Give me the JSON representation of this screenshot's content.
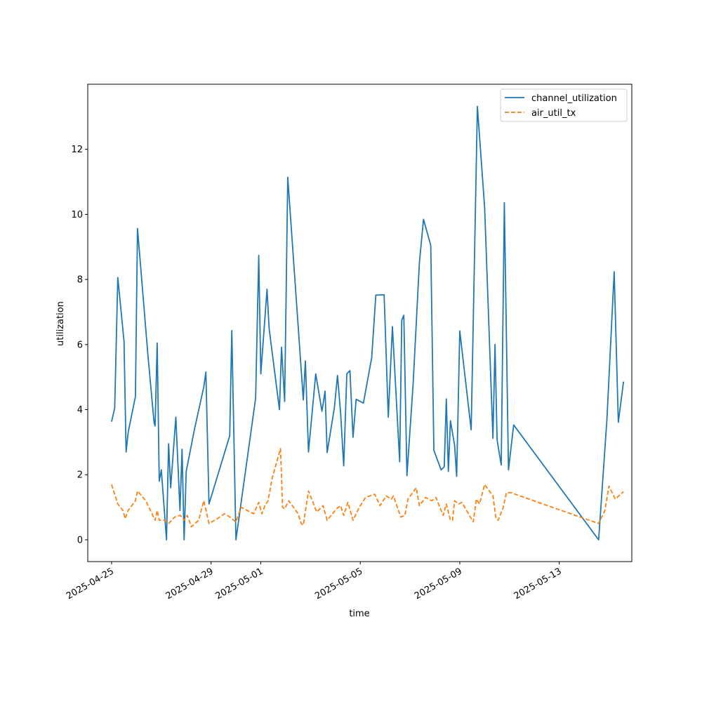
{
  "chart_data": {
    "type": "line",
    "xlabel": "time",
    "ylabel": "utilization",
    "x_type": "date",
    "xlim": [
      "2025-04-24T01:00",
      "2025-05-15T22:00"
    ],
    "ylim": [
      -0.67,
      14.0
    ],
    "x_ticks": [
      "2025-04-25",
      "2025-04-29",
      "2025-05-01",
      "2025-05-05",
      "2025-05-09",
      "2025-05-13"
    ],
    "y_ticks": [
      0,
      2,
      4,
      6,
      8,
      10,
      12
    ],
    "grid": false,
    "legend_position": "top-right",
    "series": [
      {
        "name": "channel_utilization",
        "color": "#1f77b4",
        "dash": "solid",
        "points": [
          [
            "2025-04-25T00:00",
            3.63
          ],
          [
            "2025-04-25T03:00",
            4.05
          ],
          [
            "2025-04-25T06:00",
            8.06
          ],
          [
            "2025-04-25T12:00",
            6.1
          ],
          [
            "2025-04-25T14:00",
            2.7
          ],
          [
            "2025-04-25T16:00",
            3.3
          ],
          [
            "2025-04-25T23:00",
            4.4
          ],
          [
            "2025-04-26T01:00",
            9.57
          ],
          [
            "2025-04-26T11:00",
            5.7
          ],
          [
            "2025-04-26T17:00",
            3.6
          ],
          [
            "2025-04-26T18:00",
            3.5
          ],
          [
            "2025-04-26T20:00",
            6.05
          ],
          [
            "2025-04-26T22:00",
            1.8
          ],
          [
            "2025-04-27T00:00",
            2.15
          ],
          [
            "2025-04-27T05:00",
            0.0
          ],
          [
            "2025-04-27T07:00",
            2.95
          ],
          [
            "2025-04-27T09:00",
            1.6
          ],
          [
            "2025-04-27T14:00",
            3.77
          ],
          [
            "2025-04-27T18:00",
            0.9
          ],
          [
            "2025-04-27T20:00",
            2.78
          ],
          [
            "2025-04-27T22:00",
            0.0
          ],
          [
            "2025-04-28T00:00",
            2.1
          ],
          [
            "2025-04-28T08:00",
            3.4
          ],
          [
            "2025-04-28T17:00",
            4.7
          ],
          [
            "2025-04-28T19:00",
            5.16
          ],
          [
            "2025-04-28T22:00",
            1.1
          ],
          [
            "2025-04-29T18:00",
            3.2
          ],
          [
            "2025-04-29T20:00",
            6.43
          ],
          [
            "2025-04-30T00:00",
            0.0
          ],
          [
            "2025-04-30T19:00",
            4.35
          ],
          [
            "2025-04-30T22:00",
            8.74
          ],
          [
            "2025-05-01T00:00",
            5.1
          ],
          [
            "2025-05-01T06:00",
            7.7
          ],
          [
            "2025-05-01T08:00",
            6.5
          ],
          [
            "2025-05-01T18:00",
            4.0
          ],
          [
            "2025-05-01T20:00",
            5.92
          ],
          [
            "2025-05-01T23:00",
            4.25
          ],
          [
            "2025-05-02T02:00",
            11.14
          ],
          [
            "2025-05-02T17:00",
            4.3
          ],
          [
            "2025-05-02T19:00",
            5.5
          ],
          [
            "2025-05-02T22:00",
            2.7
          ],
          [
            "2025-05-03T05:00",
            5.1
          ],
          [
            "2025-05-03T11:00",
            3.95
          ],
          [
            "2025-05-03T14:00",
            4.57
          ],
          [
            "2025-05-03T16:00",
            2.68
          ],
          [
            "2025-05-03T23:00",
            4.06
          ],
          [
            "2025-05-04T02:00",
            5.05
          ],
          [
            "2025-05-04T05:00",
            3.9
          ],
          [
            "2025-05-04T08:00",
            2.27
          ],
          [
            "2025-05-04T11:00",
            5.1
          ],
          [
            "2025-05-04T14:00",
            5.2
          ],
          [
            "2025-05-04T17:00",
            3.15
          ],
          [
            "2025-05-04T20:00",
            4.32
          ],
          [
            "2025-05-05T03:00",
            4.2
          ],
          [
            "2025-05-05T11:00",
            5.6
          ],
          [
            "2025-05-05T15:00",
            7.52
          ],
          [
            "2025-05-05T23:00",
            7.53
          ],
          [
            "2025-05-06T03:00",
            3.77
          ],
          [
            "2025-05-06T07:00",
            6.55
          ],
          [
            "2025-05-06T14:00",
            2.4
          ],
          [
            "2025-05-06T16:00",
            6.75
          ],
          [
            "2025-05-06T18:00",
            6.9
          ],
          [
            "2025-05-06T21:00",
            1.97
          ],
          [
            "2025-05-07T03:00",
            4.8
          ],
          [
            "2025-05-07T09:00",
            8.5
          ],
          [
            "2025-05-07T13:00",
            9.85
          ],
          [
            "2025-05-07T20:00",
            9.05
          ],
          [
            "2025-05-07T23:00",
            2.75
          ],
          [
            "2025-05-08T06:00",
            2.15
          ],
          [
            "2025-05-08T09:00",
            2.24
          ],
          [
            "2025-05-08T11:00",
            4.33
          ],
          [
            "2025-05-08T13:00",
            2.1
          ],
          [
            "2025-05-08T15:00",
            3.66
          ],
          [
            "2025-05-08T19:00",
            2.9
          ],
          [
            "2025-05-08T21:00",
            1.95
          ],
          [
            "2025-05-09T00:00",
            6.42
          ],
          [
            "2025-05-09T11:00",
            3.38
          ],
          [
            "2025-05-09T17:00",
            13.32
          ],
          [
            "2025-05-10T00:00",
            10.2
          ],
          [
            "2025-05-10T08:00",
            3.12
          ],
          [
            "2025-05-10T10:00",
            6.0
          ],
          [
            "2025-05-10T12:00",
            3.07
          ],
          [
            "2025-05-10T16:00",
            2.3
          ],
          [
            "2025-05-10T19:00",
            10.36
          ],
          [
            "2025-05-10T23:00",
            2.15
          ],
          [
            "2025-05-11T04:00",
            3.53
          ],
          [
            "2025-05-14T14:00",
            0.0
          ],
          [
            "2025-05-14T22:00",
            3.7
          ],
          [
            "2025-05-15T05:00",
            8.24
          ],
          [
            "2025-05-15T09:00",
            3.61
          ],
          [
            "2025-05-15T14:00",
            4.86
          ]
        ]
      },
      {
        "name": "air_util_tx",
        "color": "#ff7f0e",
        "dash": "dashed",
        "points": [
          [
            "2025-04-25T00:00",
            1.7
          ],
          [
            "2025-04-25T06:00",
            1.1
          ],
          [
            "2025-04-25T11:00",
            0.9
          ],
          [
            "2025-04-25T13:00",
            0.65
          ],
          [
            "2025-04-25T16:00",
            0.9
          ],
          [
            "2025-04-25T23:00",
            1.2
          ],
          [
            "2025-04-26T01:00",
            1.5
          ],
          [
            "2025-04-26T09:00",
            1.2
          ],
          [
            "2025-04-26T18:00",
            0.6
          ],
          [
            "2025-04-26T20:00",
            0.9
          ],
          [
            "2025-04-26T22:00",
            0.6
          ],
          [
            "2025-04-27T03:00",
            0.6
          ],
          [
            "2025-04-27T07:00",
            0.5
          ],
          [
            "2025-04-27T13:00",
            0.7
          ],
          [
            "2025-04-27T18:00",
            0.75
          ],
          [
            "2025-04-27T20:00",
            0.7
          ],
          [
            "2025-04-27T22:00",
            0.6
          ],
          [
            "2025-04-28T01:00",
            0.75
          ],
          [
            "2025-04-28T05:00",
            0.4
          ],
          [
            "2025-04-28T12:00",
            0.6
          ],
          [
            "2025-04-28T17:00",
            1.2
          ],
          [
            "2025-04-28T22:00",
            0.5
          ],
          [
            "2025-04-29T06:00",
            0.65
          ],
          [
            "2025-04-29T13:00",
            0.8
          ],
          [
            "2025-04-29T18:00",
            0.7
          ],
          [
            "2025-04-30T00:00",
            0.55
          ],
          [
            "2025-04-30T05:00",
            1.0
          ],
          [
            "2025-04-30T17:00",
            0.8
          ],
          [
            "2025-04-30T22:00",
            1.15
          ],
          [
            "2025-05-01T01:00",
            0.8
          ],
          [
            "2025-05-01T04:00",
            1.05
          ],
          [
            "2025-05-01T07:00",
            1.2
          ],
          [
            "2025-05-01T11:00",
            1.9
          ],
          [
            "2025-05-01T19:00",
            2.8
          ],
          [
            "2025-05-01T21:00",
            1.0
          ],
          [
            "2025-05-01T23:00",
            0.95
          ],
          [
            "2025-05-02T03:00",
            1.2
          ],
          [
            "2025-05-02T12:00",
            0.8
          ],
          [
            "2025-05-02T15:00",
            0.5
          ],
          [
            "2025-05-02T17:00",
            0.45
          ],
          [
            "2025-05-02T22:00",
            1.5
          ],
          [
            "2025-05-03T06:00",
            0.85
          ],
          [
            "2025-05-03T12:00",
            1.05
          ],
          [
            "2025-05-03T16:00",
            0.6
          ],
          [
            "2025-05-04T01:00",
            0.95
          ],
          [
            "2025-05-04T05:00",
            1.05
          ],
          [
            "2025-05-04T08:00",
            0.75
          ],
          [
            "2025-05-04T12:00",
            1.15
          ],
          [
            "2025-05-04T17:00",
            0.6
          ],
          [
            "2025-05-04T23:00",
            1.0
          ],
          [
            "2025-05-05T05:00",
            1.3
          ],
          [
            "2025-05-05T14:00",
            1.4
          ],
          [
            "2025-05-05T19:00",
            1.05
          ],
          [
            "2025-05-06T01:00",
            1.35
          ],
          [
            "2025-05-06T06:00",
            1.25
          ],
          [
            "2025-05-06T08:00",
            1.35
          ],
          [
            "2025-05-06T15:00",
            0.7
          ],
          [
            "2025-05-06T19:00",
            0.75
          ],
          [
            "2025-05-06T22:00",
            1.25
          ],
          [
            "2025-05-07T06:00",
            1.6
          ],
          [
            "2025-05-07T09:00",
            1.05
          ],
          [
            "2025-05-07T15:00",
            1.3
          ],
          [
            "2025-05-07T21:00",
            1.2
          ],
          [
            "2025-05-08T01:00",
            1.3
          ],
          [
            "2025-05-08T08:00",
            0.75
          ],
          [
            "2025-05-08T11:00",
            1.1
          ],
          [
            "2025-05-08T15:00",
            0.6
          ],
          [
            "2025-05-08T17:00",
            0.6
          ],
          [
            "2025-05-08T19:00",
            1.2
          ],
          [
            "2025-05-08T23:00",
            1.1
          ],
          [
            "2025-05-09T02:00",
            1.15
          ],
          [
            "2025-05-09T13:00",
            0.55
          ],
          [
            "2025-05-09T16:00",
            1.25
          ],
          [
            "2025-05-09T19:00",
            1.1
          ],
          [
            "2025-05-10T00:00",
            1.7
          ],
          [
            "2025-05-10T08:00",
            1.35
          ],
          [
            "2025-05-10T11:00",
            0.65
          ],
          [
            "2025-05-10T13:00",
            0.6
          ],
          [
            "2025-05-10T18:00",
            1.0
          ],
          [
            "2025-05-10T21:00",
            1.45
          ],
          [
            "2025-05-11T01:00",
            1.45
          ],
          [
            "2025-05-14T14:00",
            0.5
          ],
          [
            "2025-05-14T20:00",
            0.9
          ],
          [
            "2025-05-15T00:00",
            1.65
          ],
          [
            "2025-05-15T06:00",
            1.25
          ],
          [
            "2025-05-15T14:00",
            1.48
          ]
        ]
      }
    ]
  }
}
